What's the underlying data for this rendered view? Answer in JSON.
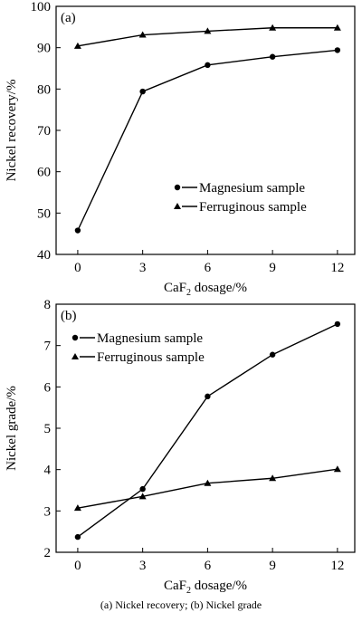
{
  "caption": "(a) Nickel recovery; (b) Nickel grade",
  "chart_data": [
    {
      "panel_label": "(a)",
      "type": "line",
      "x": [
        0,
        3,
        6,
        9,
        12
      ],
      "xticks": [
        "0",
        "3",
        "6",
        "9",
        "12"
      ],
      "xlim": [
        -1,
        12.8
      ],
      "xlabel_prefix": "CaF",
      "xlabel_sub": "2",
      "xlabel_suffix": " dosage/%",
      "ylabel": "Nickel recovery/%",
      "ylim": [
        40,
        100
      ],
      "yticks": [
        "40",
        "50",
        "60",
        "70",
        "80",
        "90",
        "100"
      ],
      "legend_position": "lower-right",
      "series": [
        {
          "name": "Magnesium sample",
          "marker": "circle",
          "values": [
            45.8,
            79.4,
            85.8,
            87.8,
            89.4
          ]
        },
        {
          "name": "Ferruginous sample",
          "marker": "triangle",
          "values": [
            90.4,
            93.1,
            94.0,
            94.8,
            94.8
          ]
        }
      ]
    },
    {
      "panel_label": "(b)",
      "type": "line",
      "x": [
        0,
        3,
        6,
        9,
        12
      ],
      "xticks": [
        "0",
        "3",
        "6",
        "9",
        "12"
      ],
      "xlim": [
        -1,
        12.8
      ],
      "xlabel_prefix": "CaF",
      "xlabel_sub": "2",
      "xlabel_suffix": " dosage/%",
      "ylabel": "Nickel grade/%",
      "ylim": [
        2,
        8
      ],
      "yticks": [
        "2",
        "3",
        "4",
        "5",
        "6",
        "7",
        "8"
      ],
      "legend_position": "top-left",
      "series": [
        {
          "name": "Magnesium sample",
          "marker": "circle",
          "values": [
            2.37,
            3.53,
            5.77,
            6.78,
            7.52
          ]
        },
        {
          "name": "Ferruginous sample",
          "marker": "triangle",
          "values": [
            3.07,
            3.35,
            3.67,
            3.79,
            4.01
          ]
        }
      ]
    }
  ]
}
